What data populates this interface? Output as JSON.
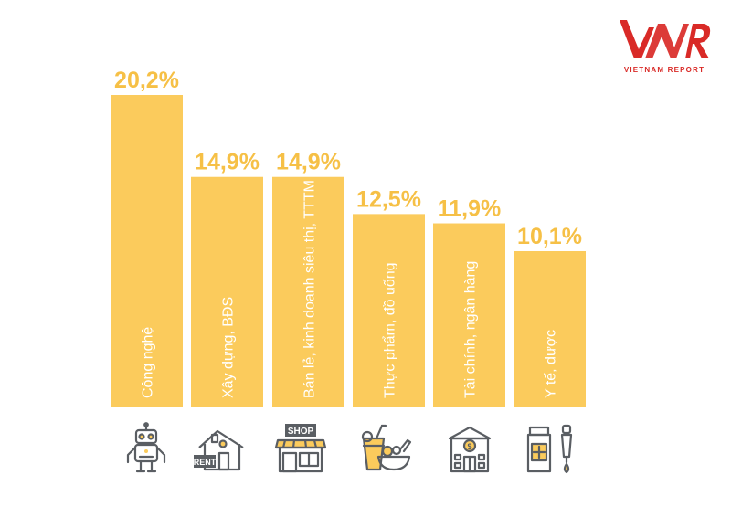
{
  "brand": {
    "name": "VIETNAM REPORT",
    "accent": "#d92a27"
  },
  "chart_data": {
    "type": "bar",
    "categories": [
      "Công nghệ",
      "Xây dựng, BĐS",
      "Bán lẻ, kinh doanh siêu thị, TTTM",
      "Thực phẩm, đồ uống",
      "Tài chính, ngân hàng",
      "Y tế, dược"
    ],
    "values": [
      20.2,
      14.9,
      14.9,
      12.5,
      11.9,
      10.1
    ],
    "value_labels": [
      "20,2%",
      "14,9%",
      "14,9%",
      "12,5%",
      "11,9%",
      "10,1%"
    ],
    "bar_color": "#fbcb5c",
    "label_color": "#f6c046",
    "icon_color": "#5a5e63",
    "ylim": [
      0,
      20.2
    ],
    "grid": false,
    "legend": "none"
  },
  "icons": [
    {
      "name": "robot-icon"
    },
    {
      "name": "rent-house-icon",
      "label": "RENT"
    },
    {
      "name": "shop-icon",
      "label": "SHOP"
    },
    {
      "name": "food-drink-icon"
    },
    {
      "name": "bank-icon",
      "label": "$"
    },
    {
      "name": "medicine-icon"
    }
  ]
}
